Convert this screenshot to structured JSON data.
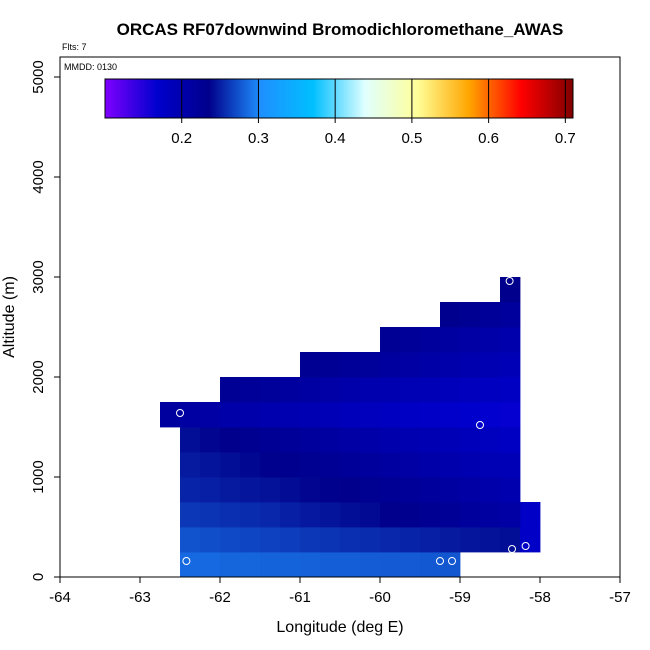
{
  "chart_data": {
    "type": "heatmap",
    "title": "ORCAS RF07downwind Bromodichloromethane_AWAS",
    "annotations": {
      "flights": "Flts: 7",
      "date": "MMDD: 0130"
    },
    "xlabel": "Longitude (deg E)",
    "ylabel": "Altitude (m)",
    "xlim": [
      -64,
      -57
    ],
    "ylim": [
      0,
      5200
    ],
    "x_ticks": [
      -64,
      -63,
      -62,
      -61,
      -60,
      -59,
      -58,
      -57
    ],
    "y_ticks": [
      0,
      1000,
      2000,
      3000,
      4000,
      5000
    ],
    "colorbar": {
      "range": [
        0.1,
        0.71
      ],
      "ticks": [
        0.2,
        0.3,
        0.4,
        0.5,
        0.6,
        0.7
      ],
      "tick_labels": [
        "0.2",
        "0.3",
        "0.4",
        "0.5",
        "0.6",
        "0.7"
      ],
      "colors": [
        "#7f00ff",
        "#0000cd",
        "#00008b",
        "#1e90ff",
        "#00bfff",
        "#e0ffff",
        "#ffff99",
        "#ffa500",
        "#ff0000",
        "#800000"
      ]
    },
    "cell_size": {
      "dlon": 0.25,
      "dalt": 250
    },
    "cells": [
      [
        -62.5,
        0,
        0.285
      ],
      [
        -62.25,
        0,
        0.285
      ],
      [
        -62.0,
        0,
        0.283
      ],
      [
        -61.75,
        0,
        0.283
      ],
      [
        -61.5,
        0,
        0.282
      ],
      [
        -61.25,
        0,
        0.282
      ],
      [
        -61.0,
        0,
        0.281
      ],
      [
        -60.75,
        0,
        0.28
      ],
      [
        -60.5,
        0,
        0.28
      ],
      [
        -60.25,
        0,
        0.279
      ],
      [
        -60.0,
        0,
        0.278
      ],
      [
        -59.75,
        0,
        0.278
      ],
      [
        -59.5,
        0,
        0.277
      ],
      [
        -59.25,
        0,
        0.276
      ],
      [
        -62.5,
        250,
        0.274
      ],
      [
        -62.25,
        250,
        0.272
      ],
      [
        -62.0,
        250,
        0.27
      ],
      [
        -61.75,
        250,
        0.268
      ],
      [
        -61.5,
        250,
        0.266
      ],
      [
        -61.25,
        250,
        0.264
      ],
      [
        -61.0,
        250,
        0.262
      ],
      [
        -60.75,
        250,
        0.26
      ],
      [
        -60.5,
        250,
        0.258
      ],
      [
        -60.25,
        250,
        0.256
      ],
      [
        -60.0,
        250,
        0.254
      ],
      [
        -59.75,
        250,
        0.252
      ],
      [
        -59.5,
        250,
        0.25
      ],
      [
        -59.25,
        250,
        0.248
      ],
      [
        -59.0,
        250,
        0.246
      ],
      [
        -58.75,
        250,
        0.244
      ],
      [
        -58.5,
        250,
        0.242
      ],
      [
        -58.25,
        250,
        0.175
      ],
      [
        -58.25,
        500,
        0.175
      ],
      [
        -62.5,
        500,
        0.262
      ],
      [
        -62.25,
        500,
        0.26
      ],
      [
        -62.0,
        500,
        0.258
      ],
      [
        -61.75,
        500,
        0.256
      ],
      [
        -61.5,
        500,
        0.254
      ],
      [
        -61.25,
        500,
        0.25
      ],
      [
        -61.0,
        500,
        0.247
      ],
      [
        -60.75,
        500,
        0.245
      ],
      [
        -60.5,
        500,
        0.242
      ],
      [
        -60.25,
        500,
        0.24
      ],
      [
        -60.0,
        500,
        0.235
      ],
      [
        -59.75,
        500,
        0.231
      ],
      [
        -59.5,
        500,
        0.227
      ],
      [
        -59.25,
        500,
        0.223
      ],
      [
        -59.0,
        500,
        0.218
      ],
      [
        -58.75,
        500,
        0.214
      ],
      [
        -58.5,
        500,
        0.21
      ],
      [
        -62.5,
        750,
        0.252
      ],
      [
        -62.25,
        750,
        0.25
      ],
      [
        -62.0,
        750,
        0.248
      ],
      [
        -61.75,
        750,
        0.246
      ],
      [
        -61.5,
        750,
        0.244
      ],
      [
        -61.25,
        750,
        0.241
      ],
      [
        -61.0,
        750,
        0.238
      ],
      [
        -60.75,
        750,
        0.236
      ],
      [
        -60.5,
        750,
        0.233
      ],
      [
        -60.25,
        750,
        0.229
      ],
      [
        -60.0,
        750,
        0.225
      ],
      [
        -59.75,
        750,
        0.221
      ],
      [
        -59.5,
        750,
        0.217
      ],
      [
        -59.25,
        750,
        0.213
      ],
      [
        -59.0,
        750,
        0.209
      ],
      [
        -58.75,
        750,
        0.204
      ],
      [
        -58.5,
        750,
        0.2
      ],
      [
        -62.5,
        1000,
        0.248
      ],
      [
        -62.25,
        1000,
        0.245
      ],
      [
        -62.0,
        1000,
        0.242
      ],
      [
        -61.75,
        1000,
        0.239
      ],
      [
        -61.5,
        1000,
        0.236
      ],
      [
        -61.25,
        1000,
        0.232
      ],
      [
        -61.0,
        1000,
        0.229
      ],
      [
        -60.75,
        1000,
        0.225
      ],
      [
        -60.5,
        1000,
        0.221
      ],
      [
        -60.25,
        1000,
        0.217
      ],
      [
        -60.0,
        1000,
        0.213
      ],
      [
        -59.75,
        1000,
        0.209
      ],
      [
        -59.5,
        1000,
        0.205
      ],
      [
        -59.25,
        1000,
        0.201
      ],
      [
        -59.0,
        1000,
        0.197
      ],
      [
        -58.75,
        1000,
        0.193
      ],
      [
        -58.5,
        1000,
        0.19
      ],
      [
        -62.5,
        1250,
        0.242
      ],
      [
        -62.25,
        1250,
        0.238
      ],
      [
        -62.0,
        1250,
        0.234
      ],
      [
        -61.75,
        1250,
        0.23
      ],
      [
        -61.5,
        1250,
        0.226
      ],
      [
        -61.25,
        1250,
        0.222
      ],
      [
        -61.0,
        1250,
        0.218
      ],
      [
        -60.75,
        1250,
        0.214
      ],
      [
        -60.5,
        1250,
        0.21
      ],
      [
        -60.25,
        1250,
        0.206
      ],
      [
        -60.0,
        1250,
        0.202
      ],
      [
        -59.75,
        1250,
        0.198
      ],
      [
        -59.5,
        1250,
        0.194
      ],
      [
        -59.25,
        1250,
        0.19
      ],
      [
        -59.0,
        1250,
        0.186
      ],
      [
        -58.75,
        1250,
        0.182
      ],
      [
        -58.5,
        1250,
        0.179
      ],
      [
        -62.75,
        1500,
        0.215
      ],
      [
        -62.5,
        1500,
        0.212
      ],
      [
        -62.25,
        1500,
        0.209
      ],
      [
        -62.0,
        1500,
        0.206
      ],
      [
        -61.75,
        1500,
        0.203
      ],
      [
        -61.5,
        1500,
        0.2
      ],
      [
        -61.25,
        1500,
        0.197
      ],
      [
        -61.0,
        1500,
        0.194
      ],
      [
        -60.75,
        1500,
        0.19
      ],
      [
        -60.5,
        1500,
        0.187
      ],
      [
        -60.25,
        1500,
        0.184
      ],
      [
        -60.0,
        1500,
        0.18
      ],
      [
        -59.75,
        1500,
        0.177
      ],
      [
        -59.5,
        1500,
        0.174
      ],
      [
        -59.25,
        1500,
        0.171
      ],
      [
        -59.0,
        1500,
        0.169
      ],
      [
        -58.75,
        1500,
        0.167
      ],
      [
        -58.5,
        1500,
        0.165
      ],
      [
        -62.0,
        1750,
        0.225
      ],
      [
        -61.75,
        1750,
        0.222
      ],
      [
        -61.5,
        1750,
        0.219
      ],
      [
        -61.25,
        1750,
        0.215
      ],
      [
        -61.0,
        1750,
        0.212
      ],
      [
        -60.75,
        1750,
        0.208
      ],
      [
        -60.5,
        1750,
        0.204
      ],
      [
        -60.25,
        1750,
        0.2
      ],
      [
        -60.0,
        1750,
        0.197
      ],
      [
        -59.75,
        1750,
        0.193
      ],
      [
        -59.5,
        1750,
        0.19
      ],
      [
        -59.25,
        1750,
        0.187
      ],
      [
        -59.0,
        1750,
        0.184
      ],
      [
        -58.75,
        1750,
        0.181
      ],
      [
        -58.5,
        1750,
        0.178
      ],
      [
        -61.0,
        2000,
        0.228
      ],
      [
        -60.75,
        2000,
        0.225
      ],
      [
        -60.5,
        2000,
        0.222
      ],
      [
        -60.25,
        2000,
        0.219
      ],
      [
        -60.0,
        2000,
        0.215
      ],
      [
        -59.75,
        2000,
        0.211
      ],
      [
        -59.5,
        2000,
        0.207
      ],
      [
        -59.25,
        2000,
        0.203
      ],
      [
        -59.0,
        2000,
        0.199
      ],
      [
        -58.75,
        2000,
        0.195
      ],
      [
        -58.5,
        2000,
        0.191
      ],
      [
        -60.0,
        2250,
        0.225
      ],
      [
        -59.75,
        2250,
        0.221
      ],
      [
        -59.5,
        2250,
        0.217
      ],
      [
        -59.25,
        2250,
        0.213
      ],
      [
        -59.0,
        2250,
        0.209
      ],
      [
        -58.75,
        2250,
        0.205
      ],
      [
        -58.5,
        2250,
        0.201
      ],
      [
        -59.25,
        2500,
        0.232
      ],
      [
        -59.0,
        2500,
        0.227
      ],
      [
        -58.75,
        2500,
        0.222
      ],
      [
        -58.5,
        2500,
        0.217
      ],
      [
        -58.5,
        2750,
        0.235
      ]
    ],
    "sample_points": [
      [
        -62.5,
        1640
      ],
      [
        -58.75,
        1520
      ],
      [
        -62.42,
        160
      ],
      [
        -59.25,
        160
      ],
      [
        -59.1,
        160
      ],
      [
        -58.38,
        2960
      ],
      [
        -58.35,
        280
      ],
      [
        -58.18,
        310
      ]
    ]
  }
}
